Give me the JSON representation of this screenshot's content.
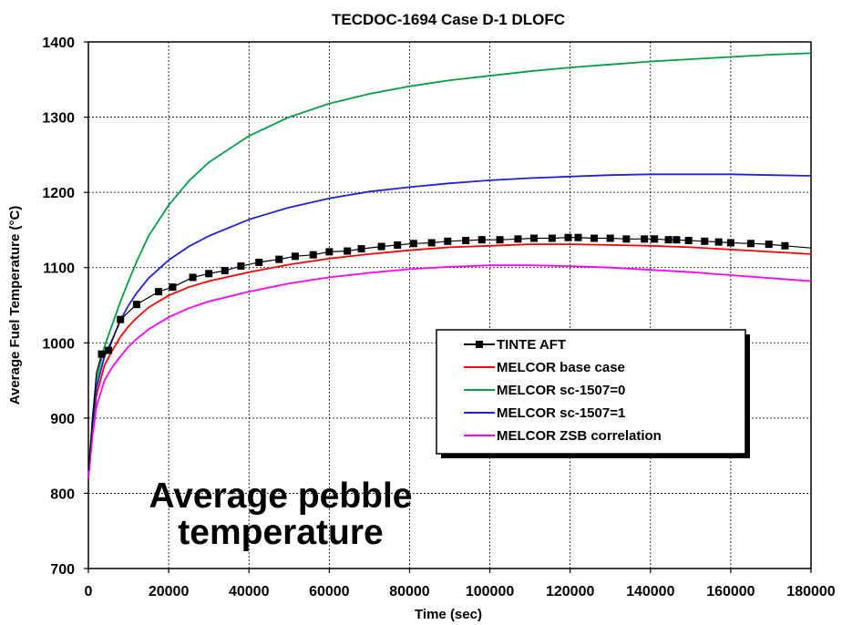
{
  "chart_data": {
    "type": "line",
    "title": "TECDOC-1694 Case D-1 DLOFC",
    "xlabel": "Time (sec)",
    "ylabel": "Average Fuel Temperature (°C)",
    "xlim": [
      0,
      180000
    ],
    "ylim": [
      700,
      1400
    ],
    "xticks": [
      0,
      20000,
      40000,
      60000,
      80000,
      100000,
      120000,
      140000,
      160000,
      180000
    ],
    "yticks": [
      700,
      800,
      900,
      1000,
      1100,
      1200,
      1300,
      1400
    ],
    "grid": "dashed",
    "legend_position": "center-right",
    "annotation": [
      "Average pebble",
      "temperature"
    ],
    "series": [
      {
        "name": "TINTE AFT",
        "color": "#000000",
        "marker": "square",
        "x": [
          0,
          2000,
          3300,
          5000,
          8000,
          12000,
          17500,
          21000,
          26000,
          30000,
          34000,
          38000,
          42500,
          47500,
          51500,
          56000,
          60000,
          64500,
          68000,
          73000,
          77000,
          81000,
          85500,
          89500,
          94000,
          98000,
          102500,
          107000,
          111000,
          115500,
          119500,
          122000,
          126000,
          130000,
          134000,
          138500,
          141000,
          144500,
          146500,
          149500,
          153500,
          157000,
          160000,
          165000,
          169500,
          173500,
          180000
        ],
        "y": [
          830,
          960,
          985,
          990,
          1031,
          1051,
          1068,
          1074,
          1087,
          1092,
          1096,
          1102,
          1107,
          1111,
          1115,
          1117,
          1121,
          1122,
          1125,
          1128,
          1130,
          1132,
          1133,
          1135,
          1136,
          1137,
          1137,
          1138,
          1139,
          1139,
          1140,
          1140,
          1139,
          1139,
          1138,
          1138,
          1138,
          1137,
          1137,
          1136,
          1135,
          1134,
          1133,
          1132,
          1131,
          1129,
          1126
        ],
        "marker_indices": [
          2,
          3,
          4,
          5,
          6,
          7,
          8,
          9,
          10,
          11,
          12,
          13,
          14,
          15,
          16,
          17,
          18,
          19,
          20,
          21,
          22,
          23,
          24,
          25,
          26,
          27,
          28,
          29,
          30,
          31,
          32,
          33,
          34,
          35,
          36,
          37,
          38,
          39,
          40,
          41,
          42,
          43,
          44,
          45
        ]
      },
      {
        "name": "MELCOR base case",
        "color": "#ff0000",
        "x": [
          0,
          1000,
          2000,
          4000,
          6000,
          8000,
          10000,
          12000,
          15000,
          20000,
          25000,
          30000,
          40000,
          50000,
          60000,
          70000,
          80000,
          90000,
          100000,
          110000,
          120000,
          130000,
          140000,
          150000,
          160000,
          170000,
          180000
        ],
        "y": [
          820,
          885,
          930,
          970,
          990,
          1008,
          1022,
          1033,
          1047,
          1063,
          1074,
          1082,
          1094,
          1104,
          1112,
          1118,
          1123,
          1127,
          1129,
          1131,
          1131,
          1130,
          1129,
          1127,
          1124,
          1121,
          1118
        ]
      },
      {
        "name": "MELCOR sc-1507=0",
        "color": "#00a040",
        "x": [
          0,
          1000,
          2000,
          4000,
          6000,
          8000,
          10000,
          12000,
          15000,
          20000,
          25000,
          30000,
          40000,
          50000,
          60000,
          70000,
          80000,
          90000,
          100000,
          110000,
          120000,
          130000,
          140000,
          150000,
          160000,
          170000,
          180000
        ],
        "y": [
          820,
          900,
          950,
          995,
          1025,
          1055,
          1082,
          1108,
          1142,
          1183,
          1215,
          1240,
          1275,
          1300,
          1318,
          1331,
          1341,
          1349,
          1355,
          1361,
          1366,
          1370,
          1374,
          1377,
          1380,
          1383,
          1385
        ]
      },
      {
        "name": "MELCOR sc-1507=1",
        "color": "#2020e0",
        "x": [
          0,
          1000,
          2000,
          4000,
          6000,
          8000,
          10000,
          12000,
          15000,
          20000,
          25000,
          30000,
          40000,
          50000,
          60000,
          70000,
          80000,
          90000,
          100000,
          110000,
          120000,
          130000,
          140000,
          150000,
          160000,
          170000,
          180000
        ],
        "y": [
          820,
          890,
          940,
          982,
          1005,
          1030,
          1050,
          1066,
          1086,
          1110,
          1128,
          1142,
          1164,
          1180,
          1192,
          1201,
          1207,
          1212,
          1216,
          1219,
          1221,
          1223,
          1224,
          1224,
          1224,
          1223,
          1222
        ]
      },
      {
        "name": "MELCOR ZSB correlation",
        "color": "#ff00ff",
        "x": [
          0,
          1000,
          2000,
          4000,
          6000,
          8000,
          10000,
          12000,
          15000,
          20000,
          25000,
          30000,
          40000,
          50000,
          60000,
          70000,
          80000,
          90000,
          100000,
          110000,
          120000,
          130000,
          140000,
          150000,
          160000,
          170000,
          180000
        ],
        "y": [
          820,
          875,
          915,
          950,
          968,
          982,
          995,
          1005,
          1018,
          1034,
          1046,
          1055,
          1068,
          1079,
          1087,
          1093,
          1098,
          1101,
          1103,
          1103,
          1102,
          1100,
          1097,
          1094,
          1090,
          1086,
          1082
        ]
      }
    ]
  }
}
